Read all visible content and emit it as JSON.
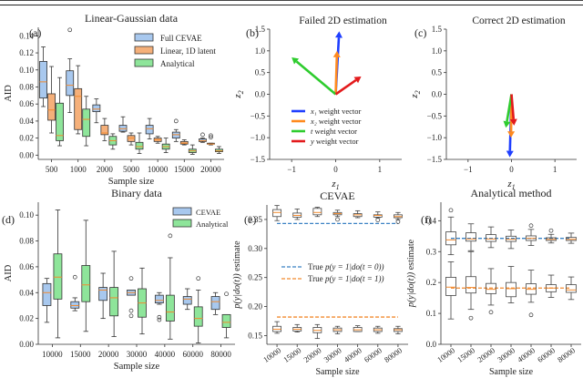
{
  "figure": {
    "panels": [
      {
        "id": "a",
        "label": "(a)"
      },
      {
        "id": "b",
        "label": "(b)"
      },
      {
        "id": "c",
        "label": "(c)"
      },
      {
        "id": "d",
        "label": "(d)"
      },
      {
        "id": "e",
        "label": "(e)"
      },
      {
        "id": "f",
        "label": "(f)"
      }
    ]
  },
  "chart_data": [
    {
      "id": "a",
      "type": "box",
      "title": "Linear-Gaussian data",
      "xlabel": "Sample size",
      "ylabel": "AID",
      "ylim": [
        -0.005,
        0.15
      ],
      "yticks": [
        "0.00",
        "0.02",
        "0.04",
        "0.06",
        "0.08",
        "0.10",
        "0.12",
        "0.14"
      ],
      "ytick_values": [
        0,
        0.02,
        0.04,
        0.06,
        0.08,
        0.1,
        0.12,
        0.14
      ],
      "categories": [
        "500",
        "1000",
        "2000",
        "5000",
        "10000",
        "15000",
        "20000"
      ],
      "legend": {
        "position": "top-right",
        "entries": [
          "Full CEVAE",
          "Linear, 1D latent",
          "Analytical"
        ]
      },
      "series": [
        {
          "name": "Full CEVAE",
          "color": "#a8c8ee",
          "boxes": [
            {
              "wl": 0.057,
              "q1": 0.067,
              "med": 0.086,
              "q3": 0.11,
              "wh": 0.127,
              "out": []
            },
            {
              "wl": 0.05,
              "q1": 0.07,
              "med": 0.082,
              "q3": 0.099,
              "wh": 0.113,
              "out": [
                0.147
              ]
            },
            {
              "wl": 0.038,
              "q1": 0.051,
              "med": 0.054,
              "q3": 0.059,
              "wh": 0.066,
              "out": []
            },
            {
              "wl": 0.027,
              "q1": 0.028,
              "med": 0.031,
              "q3": 0.035,
              "wh": 0.045,
              "out": []
            },
            {
              "wl": 0.019,
              "q1": 0.025,
              "med": 0.031,
              "q3": 0.035,
              "wh": 0.043,
              "out": []
            },
            {
              "wl": 0.016,
              "q1": 0.02,
              "med": 0.024,
              "q3": 0.027,
              "wh": 0.03,
              "out": [
                0.04
              ]
            },
            {
              "wl": 0.015,
              "q1": 0.016,
              "med": 0.017,
              "q3": 0.019,
              "wh": 0.02,
              "out": [
                0.024
              ]
            }
          ]
        },
        {
          "name": "Linear, 1D latent",
          "color": "#f5b07a",
          "boxes": [
            {
              "wl": 0.026,
              "q1": 0.041,
              "med": 0.053,
              "q3": 0.072,
              "wh": 0.104,
              "out": []
            },
            {
              "wl": 0.025,
              "q1": 0.03,
              "med": 0.069,
              "q3": 0.078,
              "wh": 0.105,
              "out": []
            },
            {
              "wl": 0.017,
              "q1": 0.024,
              "med": 0.026,
              "q3": 0.035,
              "wh": 0.043,
              "out": []
            },
            {
              "wl": 0.012,
              "q1": 0.016,
              "med": 0.02,
              "q3": 0.023,
              "wh": 0.026,
              "out": []
            },
            {
              "wl": 0.014,
              "q1": 0.016,
              "med": 0.018,
              "q3": 0.02,
              "wh": 0.022,
              "out": []
            },
            {
              "wl": 0.012,
              "q1": 0.013,
              "med": 0.014,
              "q3": 0.016,
              "wh": 0.018,
              "out": []
            },
            {
              "wl": 0.012,
              "q1": 0.013,
              "med": 0.013,
              "q3": 0.014,
              "wh": 0.014,
              "out": [
                0.021,
                0.023
              ]
            }
          ]
        },
        {
          "name": "Analytical",
          "color": "#8ee59a",
          "boxes": [
            {
              "wl": 0.011,
              "q1": 0.017,
              "med": 0.023,
              "q3": 0.061,
              "wh": 0.091,
              "out": []
            },
            {
              "wl": 0.011,
              "q1": 0.022,
              "med": 0.042,
              "q3": 0.054,
              "wh": 0.069,
              "out": []
            },
            {
              "wl": 0.007,
              "q1": 0.012,
              "med": 0.017,
              "q3": 0.022,
              "wh": 0.025,
              "out": []
            },
            {
              "wl": 0.002,
              "q1": 0.007,
              "med": 0.01,
              "q3": 0.015,
              "wh": 0.026,
              "out": []
            },
            {
              "wl": 0.003,
              "q1": 0.007,
              "med": 0.01,
              "q3": 0.013,
              "wh": 0.02,
              "out": []
            },
            {
              "wl": 0.001,
              "q1": 0.003,
              "med": 0.005,
              "q3": 0.007,
              "wh": 0.012,
              "out": []
            },
            {
              "wl": 0.002,
              "q1": 0.004,
              "med": 0.005,
              "q3": 0.007,
              "wh": 0.01,
              "out": []
            }
          ]
        }
      ]
    },
    {
      "id": "b",
      "type": "quiver",
      "title": "Failed 2D estimation",
      "xlabel": "z₁",
      "ylabel": "z₂",
      "xlim": [
        -1.5,
        1.5
      ],
      "ylim": [
        -1.5,
        1.5
      ],
      "xticks": [
        "−1",
        "0",
        "1"
      ],
      "xtick_values": [
        -1,
        0,
        1
      ],
      "yticks": [
        "−1.5",
        "−1.0",
        "−0.5",
        "0.0",
        "0.5",
        "1.0",
        "1.5"
      ],
      "ytick_values": [
        -1.5,
        -1.0,
        -0.5,
        0.0,
        0.5,
        1.0,
        1.5
      ],
      "legend": {
        "position": "lower-center",
        "entries": [
          "x₁ weight vector",
          "x₂ weight vector",
          "t weight vector",
          "y weight vector"
        ]
      },
      "vectors": [
        {
          "name": "x1 weight vector",
          "color": "#1f3fff",
          "dx": 0.08,
          "dy": 1.45
        },
        {
          "name": "x2 weight vector",
          "color": "#ff8a1e",
          "dx": 0.03,
          "dy": 1.0
        },
        {
          "name": "t weight vector",
          "color": "#2ecc2e",
          "dx": -1.0,
          "dy": 0.85
        },
        {
          "name": "y weight vector",
          "color": "#e31a1c",
          "dx": 0.58,
          "dy": 0.41
        }
      ]
    },
    {
      "id": "c",
      "type": "quiver",
      "title": "Correct 2D estimation",
      "xlabel": "z₁",
      "ylabel": "z₂",
      "xlim": [
        -1.5,
        1.5
      ],
      "ylim": [
        -1.5,
        1.5
      ],
      "xticks": [
        "−1",
        "0",
        "1"
      ],
      "xtick_values": [
        -1,
        0,
        1
      ],
      "yticks": [
        "−1.5",
        "−1.0",
        "−0.5",
        "0.0",
        "0.5",
        "1.0",
        "1.5"
      ],
      "ytick_values": [
        -1.5,
        -1.0,
        -0.5,
        0.0,
        0.5,
        1.0,
        1.5
      ],
      "vectors": [
        {
          "name": "x1 weight vector",
          "color": "#1f3fff",
          "dx": -0.04,
          "dy": -1.45
        },
        {
          "name": "x2 weight vector",
          "color": "#ff8a1e",
          "dx": -0.01,
          "dy": -1.0
        },
        {
          "name": "t weight vector",
          "color": "#2ecc2e",
          "dx": -0.13,
          "dy": -0.77
        },
        {
          "name": "y weight vector",
          "color": "#e31a1c",
          "dx": 0.06,
          "dy": -0.72
        }
      ]
    },
    {
      "id": "d",
      "type": "box",
      "title": "Binary data",
      "xlabel": "Sample size",
      "ylabel": "AID",
      "ylim": [
        0,
        0.11
      ],
      "yticks": [
        "0.00",
        "0.02",
        "0.04",
        "0.06",
        "0.08",
        "0.10"
      ],
      "ytick_values": [
        0,
        0.02,
        0.04,
        0.06,
        0.08,
        0.1
      ],
      "categories": [
        "10000",
        "15000",
        "20000",
        "30000",
        "40000",
        "60000",
        "80000"
      ],
      "legend": {
        "position": "top-right",
        "entries": [
          "CEVAE",
          "Analytical"
        ]
      },
      "series": [
        {
          "name": "CEVAE",
          "color": "#a8c8ee",
          "boxes": [
            {
              "wl": 0.017,
              "q1": 0.03,
              "med": 0.04,
              "q3": 0.047,
              "wh": 0.051,
              "out": []
            },
            {
              "wl": 0.026,
              "q1": 0.028,
              "med": 0.03,
              "q3": 0.033,
              "wh": 0.036,
              "out": [
                0.052
              ]
            },
            {
              "wl": 0.02,
              "q1": 0.034,
              "med": 0.042,
              "q3": 0.044,
              "wh": 0.055,
              "out": []
            },
            {
              "wl": 0.038,
              "q1": 0.038,
              "med": 0.04,
              "q3": 0.042,
              "wh": 0.042,
              "out": [
                0.051,
                0.026,
                0.022
              ]
            },
            {
              "wl": 0.031,
              "q1": 0.032,
              "med": 0.034,
              "q3": 0.038,
              "wh": 0.04,
              "out": [
                0.021,
                0.019
              ]
            },
            {
              "wl": 0.027,
              "q1": 0.031,
              "med": 0.035,
              "q3": 0.037,
              "wh": 0.043,
              "out": []
            },
            {
              "wl": 0.023,
              "q1": 0.027,
              "med": 0.033,
              "q3": 0.037,
              "wh": 0.04,
              "out": []
            }
          ]
        },
        {
          "name": "Analytical",
          "color": "#8ee59a",
          "boxes": [
            {
              "wl": 0.005,
              "q1": 0.035,
              "med": 0.052,
              "q3": 0.07,
              "wh": 0.104,
              "out": []
            },
            {
              "wl": 0.01,
              "q1": 0.033,
              "med": 0.046,
              "q3": 0.061,
              "wh": 0.096,
              "out": []
            },
            {
              "wl": 0.006,
              "q1": 0.022,
              "med": 0.036,
              "q3": 0.044,
              "wh": 0.072,
              "out": []
            },
            {
              "wl": 0.008,
              "q1": 0.021,
              "med": 0.032,
              "q3": 0.043,
              "wh": 0.059,
              "out": []
            },
            {
              "wl": 0.004,
              "q1": 0.018,
              "med": 0.025,
              "q3": 0.038,
              "wh": 0.067,
              "out": [
                0.084
              ]
            },
            {
              "wl": 0.001,
              "q1": 0.014,
              "med": 0.02,
              "q3": 0.029,
              "wh": 0.042,
              "out": [
                0.051
              ]
            },
            {
              "wl": 0.005,
              "q1": 0.013,
              "med": 0.017,
              "q3": 0.023,
              "wh": 0.023,
              "out": [
                0.039
              ]
            }
          ]
        }
      ]
    },
    {
      "id": "e",
      "type": "box",
      "title": "CEVAE",
      "xlabel": "Sample size",
      "ylabel": "p(y|do(t)) estimate",
      "ylim": [
        0.135,
        0.375
      ],
      "yticks": [
        "0.15",
        "0.20",
        "0.25",
        "0.30",
        "0.35"
      ],
      "ytick_values": [
        0.15,
        0.2,
        0.25,
        0.3,
        0.35
      ],
      "categories": [
        "10000",
        "15000",
        "20000",
        "30000",
        "40000",
        "60000",
        "80000"
      ],
      "legend": {
        "position": "center-right",
        "entries": [
          "True p(y = 1|do(t = 0))",
          "True p(y = 1|do(t = 1))"
        ]
      },
      "reference_lines": [
        {
          "name": "True p(y = 1|do(t = 0))",
          "value": 0.343,
          "color": "#3b82c4"
        },
        {
          "name": "True p(y = 1|do(t = 1))",
          "value": 0.182,
          "color": "#f28a2e"
        }
      ],
      "series": [
        {
          "name": "t=0",
          "boxes": [
            {
              "wl": 0.348,
              "q1": 0.355,
              "med": 0.362,
              "q3": 0.367,
              "wh": 0.374,
              "out": []
            },
            {
              "wl": 0.35,
              "q1": 0.354,
              "med": 0.357,
              "q3": 0.361,
              "wh": 0.368,
              "out": []
            },
            {
              "wl": 0.355,
              "q1": 0.358,
              "med": 0.362,
              "q3": 0.369,
              "wh": 0.371,
              "out": []
            },
            {
              "wl": 0.355,
              "q1": 0.358,
              "med": 0.36,
              "q3": 0.362,
              "wh": 0.366,
              "out": [
                0.35
              ]
            },
            {
              "wl": 0.353,
              "q1": 0.355,
              "med": 0.358,
              "q3": 0.36,
              "wh": 0.365,
              "out": []
            },
            {
              "wl": 0.353,
              "q1": 0.354,
              "med": 0.357,
              "q3": 0.358,
              "wh": 0.363,
              "out": [
                0.349
              ]
            },
            {
              "wl": 0.35,
              "q1": 0.353,
              "med": 0.355,
              "q3": 0.358,
              "wh": 0.362,
              "out": [
                0.346
              ]
            }
          ]
        },
        {
          "name": "t=1",
          "boxes": [
            {
              "wl": 0.154,
              "q1": 0.157,
              "med": 0.161,
              "q3": 0.166,
              "wh": 0.174,
              "out": []
            },
            {
              "wl": 0.156,
              "q1": 0.158,
              "med": 0.161,
              "q3": 0.164,
              "wh": 0.169,
              "out": []
            },
            {
              "wl": 0.145,
              "q1": 0.155,
              "med": 0.159,
              "q3": 0.164,
              "wh": 0.169,
              "out": []
            },
            {
              "wl": 0.153,
              "q1": 0.157,
              "med": 0.16,
              "q3": 0.163,
              "wh": 0.166,
              "out": []
            },
            {
              "wl": 0.157,
              "q1": 0.157,
              "med": 0.16,
              "q3": 0.164,
              "wh": 0.167,
              "out": []
            },
            {
              "wl": 0.154,
              "q1": 0.157,
              "med": 0.16,
              "q3": 0.163,
              "wh": 0.166,
              "out": []
            },
            {
              "wl": 0.153,
              "q1": 0.157,
              "med": 0.16,
              "q3": 0.162,
              "wh": 0.166,
              "out": []
            }
          ]
        }
      ]
    },
    {
      "id": "f",
      "type": "box",
      "title": "Analytical method",
      "xlabel": "Sample size",
      "ylabel": "p(y|do(t)) estimate",
      "ylim": [
        0,
        0.46
      ],
      "yticks": [
        "0.0",
        "0.1",
        "0.2",
        "0.3",
        "0.4"
      ],
      "ytick_values": [
        0,
        0.1,
        0.2,
        0.3,
        0.4
      ],
      "categories": [
        "10000",
        "15000",
        "20000",
        "30000",
        "40000",
        "60000",
        "80000"
      ],
      "reference_lines": [
        {
          "name": "True p(y = 1|do(t = 0))",
          "value": 0.343,
          "color": "#3b82c4"
        },
        {
          "name": "True p(y = 1|do(t = 1))",
          "value": 0.182,
          "color": "#f28a2e"
        }
      ],
      "series": [
        {
          "name": "t=0",
          "boxes": [
            {
              "wl": 0.29,
              "q1": 0.322,
              "med": 0.338,
              "q3": 0.364,
              "wh": 0.412,
              "out": [
                0.434
              ]
            },
            {
              "wl": 0.303,
              "q1": 0.334,
              "med": 0.341,
              "q3": 0.361,
              "wh": 0.39,
              "out": []
            },
            {
              "wl": 0.313,
              "q1": 0.333,
              "med": 0.341,
              "q3": 0.355,
              "wh": 0.38,
              "out": []
            },
            {
              "wl": 0.31,
              "q1": 0.333,
              "med": 0.34,
              "q3": 0.35,
              "wh": 0.37,
              "out": []
            },
            {
              "wl": 0.32,
              "q1": 0.336,
              "med": 0.343,
              "q3": 0.351,
              "wh": 0.372,
              "out": [
                0.384
              ]
            },
            {
              "wl": 0.328,
              "q1": 0.336,
              "med": 0.34,
              "q3": 0.345,
              "wh": 0.356,
              "out": [
                0.368
              ]
            },
            {
              "wl": 0.327,
              "q1": 0.336,
              "med": 0.34,
              "q3": 0.346,
              "wh": 0.36,
              "out": []
            }
          ]
        },
        {
          "name": "t=1",
          "boxes": [
            {
              "wl": 0.082,
              "q1": 0.158,
              "med": 0.185,
              "q3": 0.217,
              "wh": 0.267,
              "out": []
            },
            {
              "wl": 0.113,
              "q1": 0.166,
              "med": 0.184,
              "q3": 0.219,
              "wh": 0.3,
              "out": [
                0.085
              ]
            },
            {
              "wl": 0.127,
              "q1": 0.164,
              "med": 0.178,
              "q3": 0.197,
              "wh": 0.245,
              "out": [
                0.104
              ]
            },
            {
              "wl": 0.134,
              "q1": 0.154,
              "med": 0.18,
              "q3": 0.2,
              "wh": 0.252,
              "out": []
            },
            {
              "wl": 0.136,
              "q1": 0.162,
              "med": 0.178,
              "q3": 0.196,
              "wh": 0.24,
              "out": [
                0.095
              ]
            },
            {
              "wl": 0.152,
              "q1": 0.17,
              "med": 0.182,
              "q3": 0.193,
              "wh": 0.224,
              "out": []
            },
            {
              "wl": 0.145,
              "q1": 0.168,
              "med": 0.176,
              "q3": 0.193,
              "wh": 0.218,
              "out": []
            }
          ]
        }
      ]
    }
  ]
}
